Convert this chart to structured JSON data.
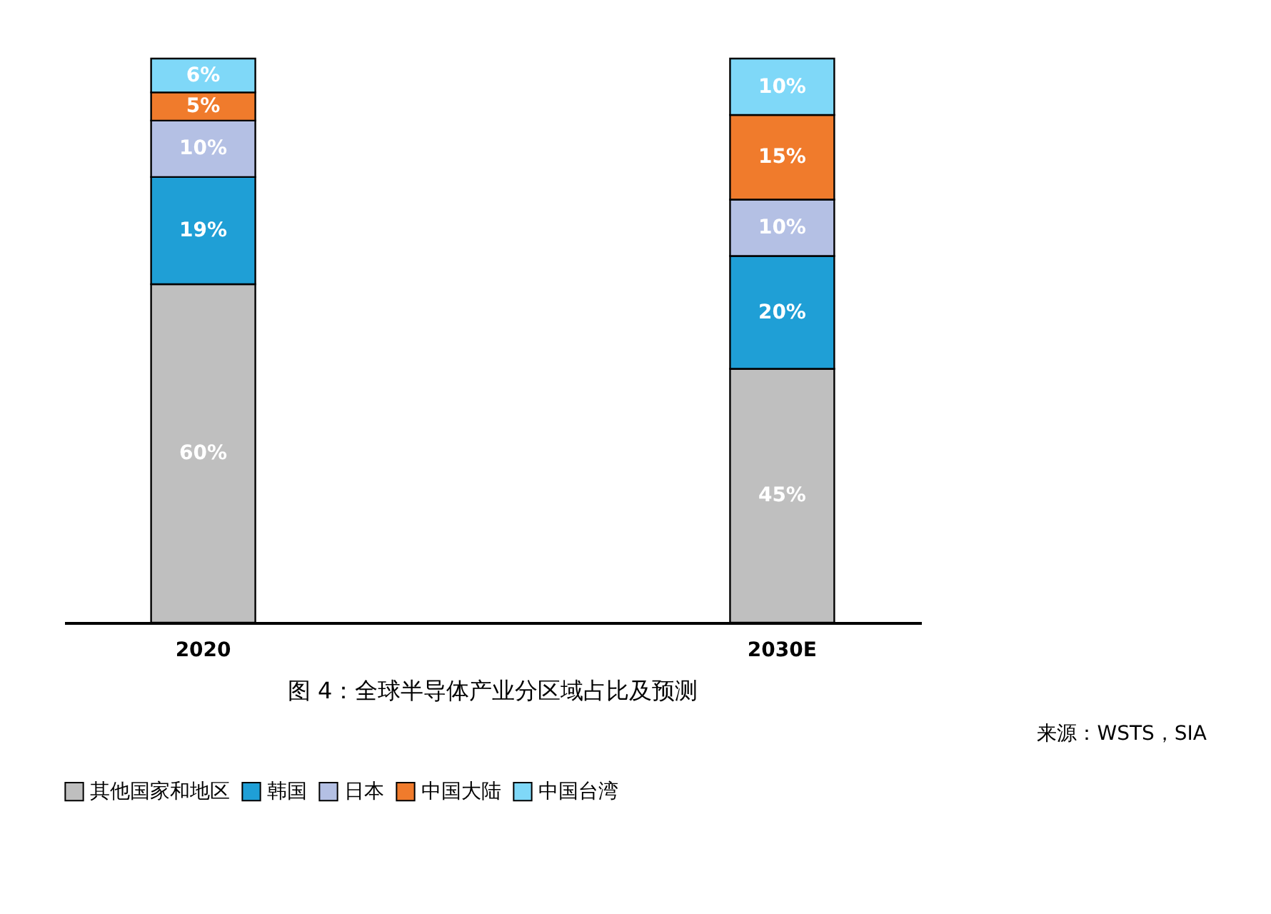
{
  "chart_data": {
    "type": "bar",
    "stacked": true,
    "title": "图 4：全球半导体产业分区域占比及预测",
    "categories": [
      "2020",
      "2030E"
    ],
    "series": [
      {
        "name": "其他国家和地区",
        "color": "#bfbfbf",
        "values": [
          60,
          45
        ],
        "value_labels": [
          "60%",
          "45%"
        ]
      },
      {
        "name": "韩国",
        "color": "#1f9fd6",
        "values": [
          19,
          20
        ],
        "value_labels": [
          "19%",
          "20%"
        ]
      },
      {
        "name": "日本",
        "color": "#b4c0e4",
        "values": [
          10,
          10
        ],
        "value_labels": [
          "10%",
          "10%"
        ]
      },
      {
        "name": "中国大陆",
        "color": "#f07b2c",
        "values": [
          5,
          15
        ],
        "value_labels": [
          "5%",
          "15%"
        ]
      },
      {
        "name": "中国台湾",
        "color": "#7fd8f8",
        "values": [
          6,
          10
        ],
        "value_labels": [
          "6%",
          "10%"
        ]
      }
    ],
    "legend": "bottom",
    "annotations": [
      "来源：WSTS，SIA"
    ]
  }
}
